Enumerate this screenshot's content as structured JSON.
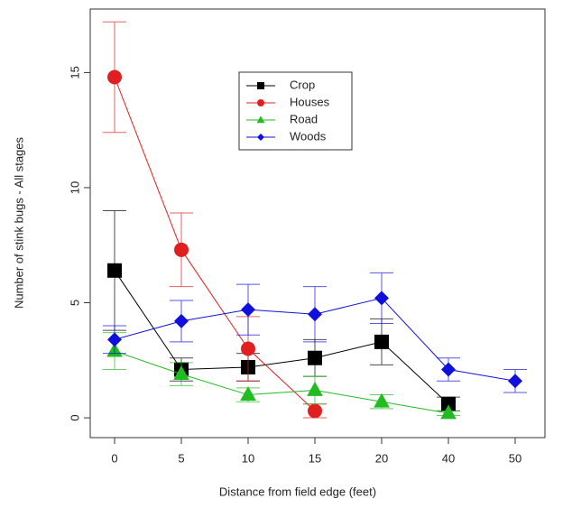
{
  "chart_data": {
    "type": "line",
    "x_label": "Distance from field edge (feet)",
    "y_label": "Number of stink bugs - All stages",
    "categories": [
      "0",
      "5",
      "10",
      "15",
      "20",
      "40",
      "50"
    ],
    "series": [
      {
        "name": "Crop",
        "color": "#000000",
        "marker": "square",
        "values": [
          6.4,
          2.1,
          2.2,
          2.6,
          3.3,
          0.6,
          null
        ],
        "errors": [
          2.6,
          0.5,
          0.6,
          0.8,
          1.0,
          0.3,
          null
        ]
      },
      {
        "name": "Houses",
        "color": "#e02020",
        "marker": "circle",
        "values": [
          14.8,
          7.3,
          3.0,
          0.3,
          null,
          null,
          null
        ],
        "errors": [
          2.4,
          1.6,
          1.4,
          0.3,
          null,
          null,
          null
        ]
      },
      {
        "name": "Road",
        "color": "#22bb22",
        "marker": "triangle",
        "values": [
          2.9,
          1.9,
          1.0,
          1.2,
          0.7,
          0.2,
          null
        ],
        "errors": [
          0.8,
          0.5,
          0.3,
          0.6,
          0.3,
          0.1,
          null
        ]
      },
      {
        "name": "Woods",
        "color": "#1010dd",
        "marker": "diamond",
        "values": [
          3.4,
          4.2,
          4.7,
          4.5,
          5.2,
          2.1,
          1.6
        ],
        "errors": [
          0.6,
          0.9,
          1.1,
          1.2,
          1.1,
          0.5,
          0.5
        ]
      }
    ],
    "ylim": [
      -0.86,
      17.76
    ],
    "yticks": [
      0,
      5,
      10,
      15
    ],
    "legend": "top"
  }
}
